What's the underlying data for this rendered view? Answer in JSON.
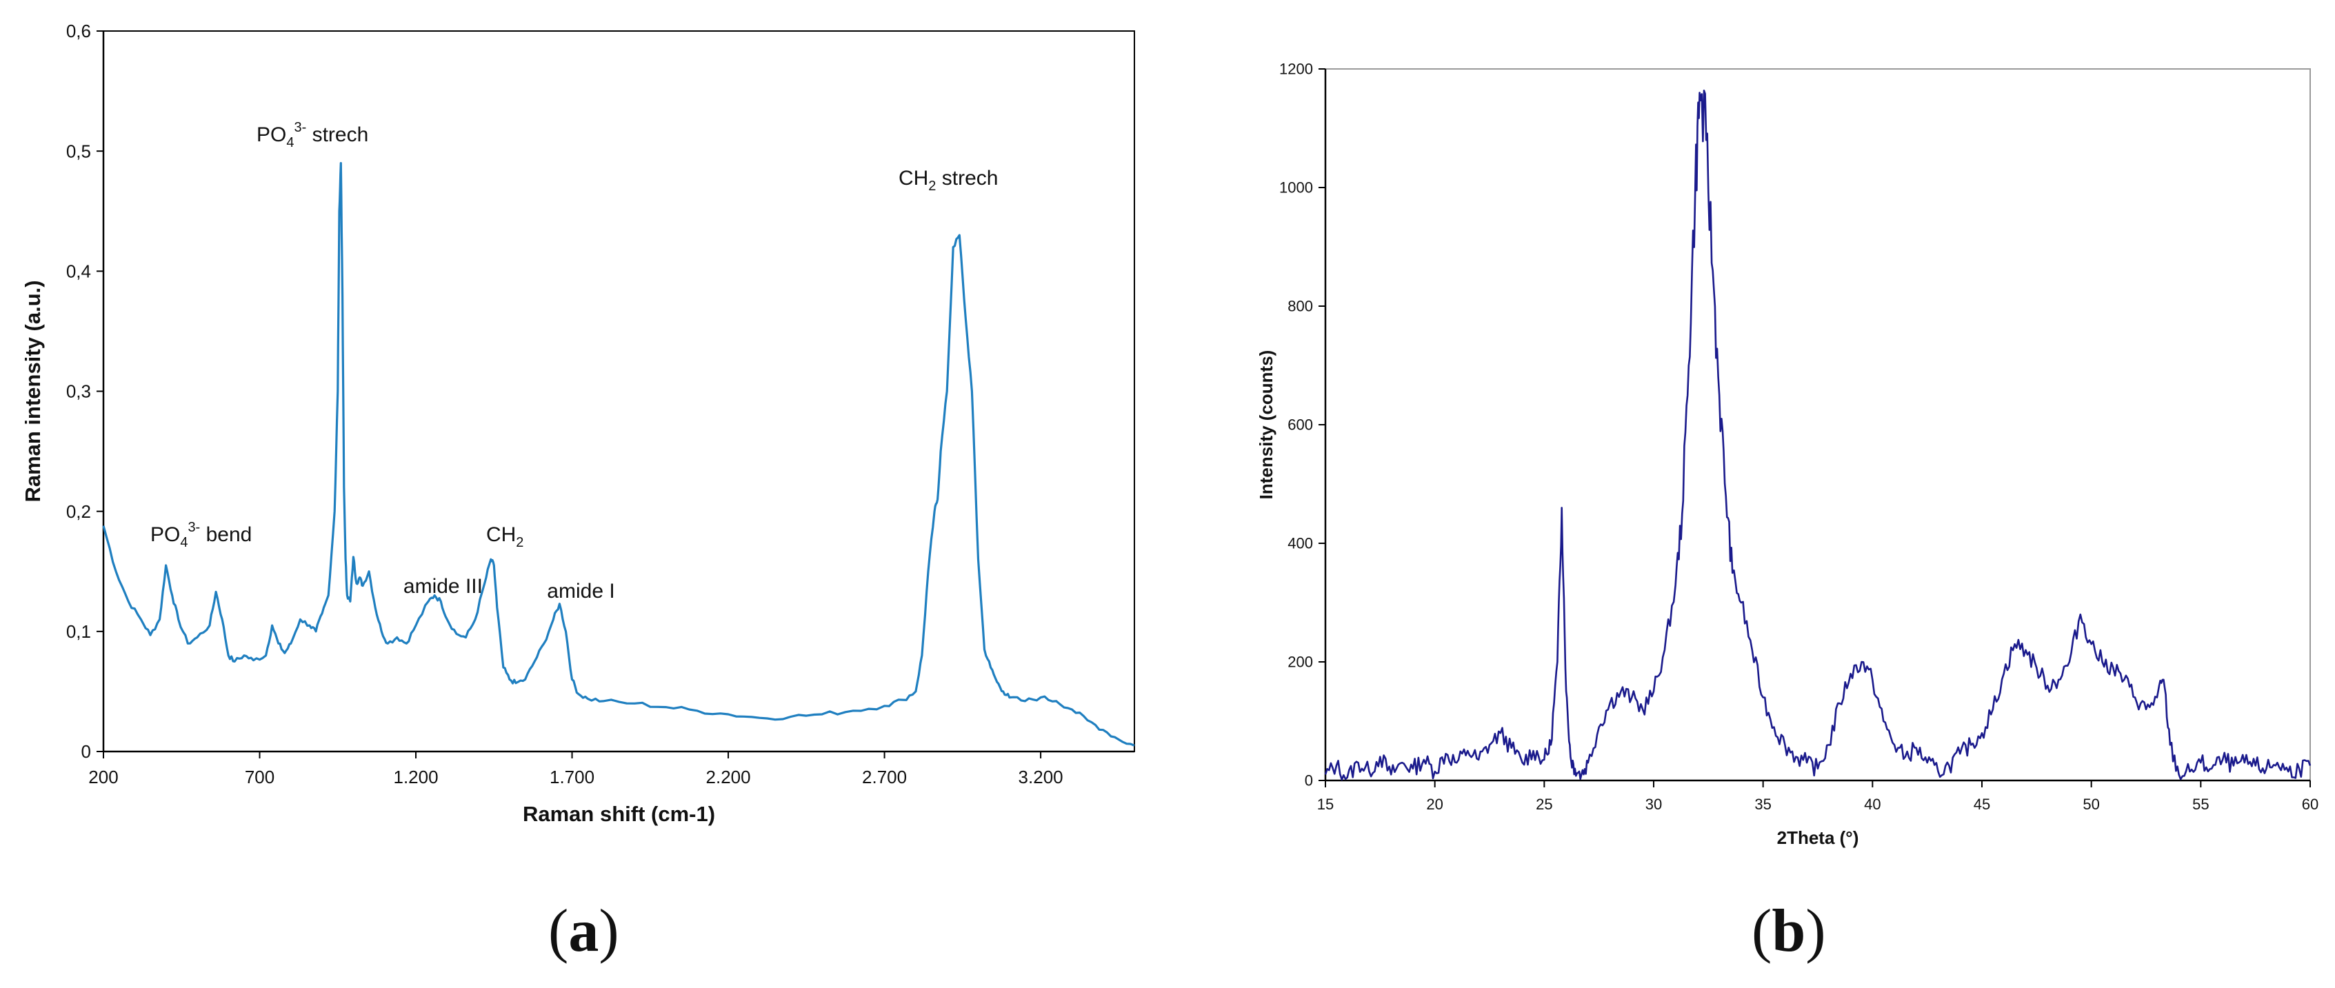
{
  "panel_labels": {
    "a": "a",
    "b": "b"
  },
  "colors": {
    "raman_line": "#1f7fc0",
    "xrd_line": "#1a1a8c",
    "axis": "#000000",
    "frame": "#999999"
  },
  "chart_data": [
    {
      "id": "a",
      "type": "line",
      "xlabel": "Raman shift (cm-1)",
      "ylabel": "Raman intensity (a.u.)",
      "xlim": [
        200,
        3500
      ],
      "ylim": [
        0,
        0.6
      ],
      "x_ticks": [
        200,
        700,
        1200,
        1700,
        2200,
        2700,
        3200
      ],
      "x_tick_labels": [
        "200",
        "700",
        "1.200",
        "1.700",
        "2.200",
        "2.700",
        "3.200"
      ],
      "y_ticks": [
        0,
        0.1,
        0.2,
        0.3,
        0.4,
        0.5,
        0.6
      ],
      "y_tick_labels": [
        "0",
        "0,1",
        "0,2",
        "0,3",
        "0,4",
        "0,5",
        "0,6"
      ],
      "grid": false,
      "series": [
        {
          "x": [
            200,
            240,
            280,
            320,
            350,
            380,
            400,
            420,
            440,
            470,
            500,
            540,
            560,
            580,
            600,
            620,
            650,
            680,
            720,
            740,
            760,
            780,
            800,
            830,
            860,
            880,
            900,
            920,
            940,
            950,
            955,
            960,
            965,
            970,
            975,
            980,
            990,
            1000,
            1010,
            1020,
            1030,
            1050,
            1070,
            1090,
            1110,
            1140,
            1170,
            1200,
            1240,
            1260,
            1280,
            1300,
            1330,
            1360,
            1390,
            1420,
            1440,
            1450,
            1460,
            1480,
            1500,
            1520,
            1550,
            1580,
            1610,
            1640,
            1660,
            1680,
            1700,
            1720,
            1750,
            1800,
            1900,
            2000,
            2100,
            2200,
            2300,
            2400,
            2500,
            2600,
            2700,
            2760,
            2800,
            2820,
            2840,
            2860,
            2870,
            2880,
            2900,
            2920,
            2940,
            2960,
            2980,
            3000,
            3020,
            3040,
            3060,
            3080,
            3100,
            3150,
            3200,
            3250,
            3300,
            3350,
            3400,
            3450,
            3500
          ],
          "y": [
            0.188,
            0.15,
            0.125,
            0.11,
            0.097,
            0.11,
            0.155,
            0.13,
            0.11,
            0.09,
            0.095,
            0.105,
            0.133,
            0.11,
            0.08,
            0.075,
            0.08,
            0.076,
            0.08,
            0.105,
            0.09,
            0.082,
            0.09,
            0.11,
            0.105,
            0.1,
            0.115,
            0.13,
            0.2,
            0.3,
            0.45,
            0.49,
            0.38,
            0.22,
            0.16,
            0.13,
            0.125,
            0.162,
            0.14,
            0.145,
            0.138,
            0.15,
            0.12,
            0.1,
            0.09,
            0.095,
            0.09,
            0.105,
            0.125,
            0.13,
            0.125,
            0.11,
            0.098,
            0.095,
            0.11,
            0.14,
            0.16,
            0.155,
            0.12,
            0.07,
            0.06,
            0.057,
            0.06,
            0.075,
            0.09,
            0.11,
            0.123,
            0.1,
            0.06,
            0.048,
            0.044,
            0.042,
            0.04,
            0.037,
            0.034,
            0.031,
            0.028,
            0.029,
            0.031,
            0.034,
            0.038,
            0.043,
            0.05,
            0.08,
            0.15,
            0.2,
            0.21,
            0.25,
            0.3,
            0.42,
            0.43,
            0.36,
            0.3,
            0.16,
            0.085,
            0.07,
            0.058,
            0.05,
            0.045,
            0.042,
            0.045,
            0.042,
            0.035,
            0.026,
            0.018,
            0.01,
            0.005
          ]
        }
      ],
      "annotations": [
        {
          "text_main": "PO",
          "sub": "4",
          "sup": "3-",
          "suffix": " bend",
          "x": 350,
          "y": 0.175
        },
        {
          "text_main": "PO",
          "sub": "4",
          "sup": "3-",
          "suffix": " strech",
          "x": 690,
          "y": 0.508
        },
        {
          "text_main": "amide III",
          "x": 1160,
          "y": 0.132
        },
        {
          "text_main": "CH",
          "sub": "2",
          "suffix": "",
          "x": 1425,
          "y": 0.175
        },
        {
          "text_main": "amide I",
          "x": 1620,
          "y": 0.128
        },
        {
          "text_main": "CH",
          "sub": "2",
          "suffix": " strech",
          "x": 2745,
          "y": 0.472
        }
      ]
    },
    {
      "id": "b",
      "type": "line",
      "xlabel": "2Theta (°)",
      "ylabel": "Intensity (counts)",
      "xlim": [
        15,
        60
      ],
      "ylim": [
        0,
        1200
      ],
      "x_ticks": [
        15,
        20,
        25,
        30,
        35,
        40,
        45,
        50,
        55,
        60
      ],
      "x_tick_labels": [
        "15",
        "20",
        "25",
        "30",
        "35",
        "40",
        "45",
        "50",
        "55",
        "60"
      ],
      "y_ticks": [
        0,
        200,
        400,
        600,
        800,
        1000,
        1200
      ],
      "y_tick_labels": [
        "0",
        "200",
        "400",
        "600",
        "800",
        "1000",
        "1200"
      ],
      "grid": false,
      "series": [
        {
          "x": [
            15,
            15.5,
            16,
            16.5,
            17,
            17.5,
            18,
            18.5,
            19,
            19.5,
            20,
            20.5,
            21,
            21.5,
            22,
            22.5,
            23,
            23.5,
            24,
            24.5,
            25,
            25.3,
            25.6,
            25.8,
            26,
            26.2,
            26.4,
            26.7,
            27,
            27.5,
            28,
            28.5,
            29,
            29.5,
            30,
            30.5,
            31,
            31.3,
            31.6,
            31.9,
            32.1,
            32.4,
            32.7,
            33,
            33.3,
            33.6,
            34,
            34.5,
            35,
            35.5,
            36,
            36.5,
            37,
            37.5,
            38,
            38.5,
            39,
            39.5,
            40,
            40.5,
            41,
            41.5,
            42,
            42.5,
            43,
            43.5,
            44,
            44.5,
            45,
            45.5,
            46,
            46.5,
            47,
            47.5,
            48,
            48.5,
            49,
            49.5,
            50,
            50.5,
            51,
            51.5,
            52,
            52.5,
            53,
            53.3,
            53.6,
            54,
            54.5,
            55,
            55.5,
            56,
            56.5,
            57,
            57.5,
            58,
            58.5,
            59,
            59.5,
            60
          ],
          "y": [
            10,
            25,
            5,
            30,
            15,
            40,
            10,
            30,
            20,
            35,
            15,
            45,
            30,
            50,
            35,
            60,
            80,
            55,
            30,
            50,
            35,
            60,
            200,
            460,
            150,
            40,
            20,
            10,
            30,
            90,
            130,
            150,
            140,
            120,
            150,
            220,
            330,
            450,
            700,
            1000,
            1160,
            1080,
            860,
            650,
            480,
            350,
            300,
            220,
            140,
            90,
            60,
            40,
            30,
            20,
            60,
            130,
            180,
            200,
            170,
            100,
            60,
            40,
            55,
            30,
            15,
            25,
            45,
            60,
            80,
            120,
            180,
            230,
            220,
            190,
            160,
            170,
            200,
            280,
            230,
            200,
            190,
            170,
            140,
            120,
            140,
            170,
            60,
            10,
            15,
            30,
            20,
            35,
            25,
            30,
            25,
            20,
            30,
            15,
            20,
            25
          ]
        }
      ]
    }
  ]
}
